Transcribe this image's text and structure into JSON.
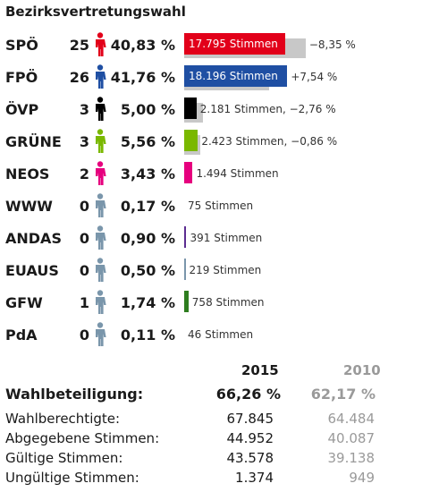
{
  "title": "Bezirksvertretungswahl",
  "chart_data": {
    "type": "bar",
    "title": "Bezirksvertretungswahl",
    "categories": [
      "SPÖ",
      "FPÖ",
      "ÖVP",
      "GRÜNE",
      "NEOS",
      "WWW",
      "ANDAS",
      "EUAUS",
      "GFW",
      "PdA"
    ],
    "parties": [
      {
        "name": "SPÖ",
        "seats": "25",
        "pct": "40,83 %",
        "pct_value": 40.83,
        "prev_pct_value": 49.18,
        "votes": 17795,
        "votes_text": "17.795 Stimmen",
        "change_text": "−8,35 %",
        "color": "#e2001a",
        "inside": true
      },
      {
        "name": "FPÖ",
        "seats": "26",
        "pct": "41,76 %",
        "pct_value": 41.76,
        "prev_pct_value": 34.22,
        "votes": 18196,
        "votes_text": "18.196 Stimmen",
        "change_text": "+7,54 %",
        "color": "#1f4fa3",
        "inside": true
      },
      {
        "name": "ÖVP",
        "seats": "3",
        "pct": "5,00 %",
        "pct_value": 5.0,
        "prev_pct_value": 7.76,
        "votes": 2181,
        "votes_text": "2.181 Stimmen, −2,76 %",
        "change_text": "",
        "color": "#000000",
        "inside": false
      },
      {
        "name": "GRÜNE",
        "seats": "3",
        "pct": "5,56 %",
        "pct_value": 5.56,
        "prev_pct_value": 6.42,
        "votes": 2423,
        "votes_text": "2.423 Stimmen, −0,86 %",
        "change_text": "",
        "color": "#7ab800",
        "inside": false
      },
      {
        "name": "NEOS",
        "seats": "2",
        "pct": "3,43 %",
        "pct_value": 3.43,
        "prev_pct_value": null,
        "votes": 1494,
        "votes_text": "1.494 Stimmen",
        "change_text": "",
        "color": "#e6007e",
        "inside": false
      },
      {
        "name": "WWW",
        "seats": "0",
        "pct": "0,17 %",
        "pct_value": 0.17,
        "prev_pct_value": null,
        "votes": 75,
        "votes_text": "75 Stimmen",
        "change_text": "",
        "color": "#7a96ab",
        "inside": false
      },
      {
        "name": "ANDAS",
        "seats": "0",
        "pct": "0,90 %",
        "pct_value": 0.9,
        "prev_pct_value": null,
        "votes": 391,
        "votes_text": "391 Stimmen",
        "change_text": "",
        "color": "#5c2d91",
        "inside": false
      },
      {
        "name": "EUAUS",
        "seats": "0",
        "pct": "0,50 %",
        "pct_value": 0.5,
        "prev_pct_value": null,
        "votes": 219,
        "votes_text": "219 Stimmen",
        "change_text": "",
        "color": "#7a96ab",
        "inside": false
      },
      {
        "name": "GFW",
        "seats": "1",
        "pct": "1,74 %",
        "pct_value": 1.74,
        "prev_pct_value": null,
        "votes": 758,
        "votes_text": "758 Stimmen",
        "change_text": "",
        "color": "#2e7d1f",
        "inside": false
      },
      {
        "name": "PdA",
        "seats": "0",
        "pct": "0,11 %",
        "pct_value": 0.11,
        "prev_pct_value": null,
        "votes": 46,
        "votes_text": "46 Stimmen",
        "change_text": "",
        "color": "#7a96ab",
        "inside": false
      }
    ],
    "seat_figure_colors": {
      "SPÖ": "#e2001a",
      "FPÖ": "#1f4fa3",
      "ÖVP": "#000000",
      "GRÜNE": "#7ab800",
      "NEOS": "#e6007e",
      "default": "#7a96ab"
    },
    "x_max_pct": 42
  },
  "stats": {
    "year_current": "2015",
    "year_previous": "2010",
    "turnout_label": "Wahlbeteiligung:",
    "turnout_current": "66,26 %",
    "turnout_previous": "62,17 %",
    "rows": [
      {
        "label": "Wahlberechtigte:",
        "current": "67.845",
        "previous": "64.484"
      },
      {
        "label": "Abgegebene Stimmen:",
        "current": "44.952",
        "previous": "40.087"
      },
      {
        "label": "Gültige Stimmen:",
        "current": "43.578",
        "previous": "39.138"
      },
      {
        "label": "Ungültige Stimmen:",
        "current": "1.374",
        "previous": "949"
      }
    ]
  }
}
